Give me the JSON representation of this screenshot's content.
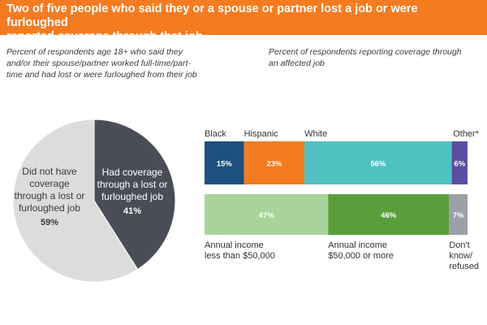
{
  "title": "Two of five people who said they or a spouse or partner lost a job or were furloughed reported coverage through that job.",
  "title_lines": [
    "Two of five people who said they or a spouse or partner lost a job or were furloughed",
    "reported coverage through that job."
  ],
  "subtitle_left": "Percent of respondents age 18+ who said they and/or their spouse/partner worked full-time/part-time and had lost or were furloughed from their job",
  "subtitle_left_lines": [
    "Percent of respondents age 18+ who said they",
    "and/or their spouse/partner worked full-time/part-",
    "time and had lost or were furloughed from their job"
  ],
  "subtitle_right": "Percent of respondents reporting coverage through an affected job",
  "subtitle_right_lines": [
    "Percent of respondents reporting coverage through",
    "an affected job"
  ],
  "colors": {
    "brand": "#f47b20",
    "pie_dark": "#4a4d55",
    "pie_light": "#dcdcdc",
    "black": "#1d4f7f",
    "hispanic": "#f47b20",
    "white": "#4fc1c1",
    "other": "#5b4ea0",
    "income_low": "#a8d49a",
    "income_high": "#5a9e3c",
    "income_unknown": "#9aa0a6"
  },
  "chart_data": [
    {
      "type": "pie",
      "title": "Percent of respondents age 18+ who said they and/or their spouse/partner worked full-time/part-time and had lost or were furloughed from their job",
      "slices": [
        {
          "label": "Had coverage through a lost or furloughed job",
          "label_lines": [
            "Had coverage",
            "through a lost or",
            "furloughed job"
          ],
          "value": 41,
          "value_label": "41%"
        },
        {
          "label": "Did not have coverage through a lost or furloughed job",
          "label_lines": [
            "Did not have",
            "coverage",
            "through a lost or",
            "furloughed job"
          ],
          "value": 59,
          "value_label": "59%"
        }
      ]
    },
    {
      "type": "bar",
      "orientation": "horizontal-stacked",
      "title": "Percent of respondents reporting coverage through an affected job",
      "series": [
        {
          "name": "Black",
          "value": 15,
          "value_label": "15%"
        },
        {
          "name": "Hispanic",
          "value": 23,
          "value_label": "23%"
        },
        {
          "name": "White",
          "value": 56,
          "value_label": "56%"
        },
        {
          "name": "Other*",
          "value": 6,
          "value_label": "6%"
        }
      ]
    },
    {
      "type": "bar",
      "orientation": "horizontal-stacked",
      "title": "Percent of respondents reporting coverage through an affected job, by annual income",
      "series": [
        {
          "name": "Annual income less than $50,000",
          "name_lines": [
            "Annual income",
            "less than $50,000"
          ],
          "value": 47,
          "value_label": "47%"
        },
        {
          "name": "Annual income $50,000 or more",
          "name_lines": [
            "Annual income",
            "$50,000 or more"
          ],
          "value": 46,
          "value_label": "46%"
        },
        {
          "name": "Don't know/ refused",
          "name_lines": [
            "Don't",
            "know/",
            "refused"
          ],
          "value": 7,
          "value_label": "7%"
        }
      ]
    }
  ]
}
